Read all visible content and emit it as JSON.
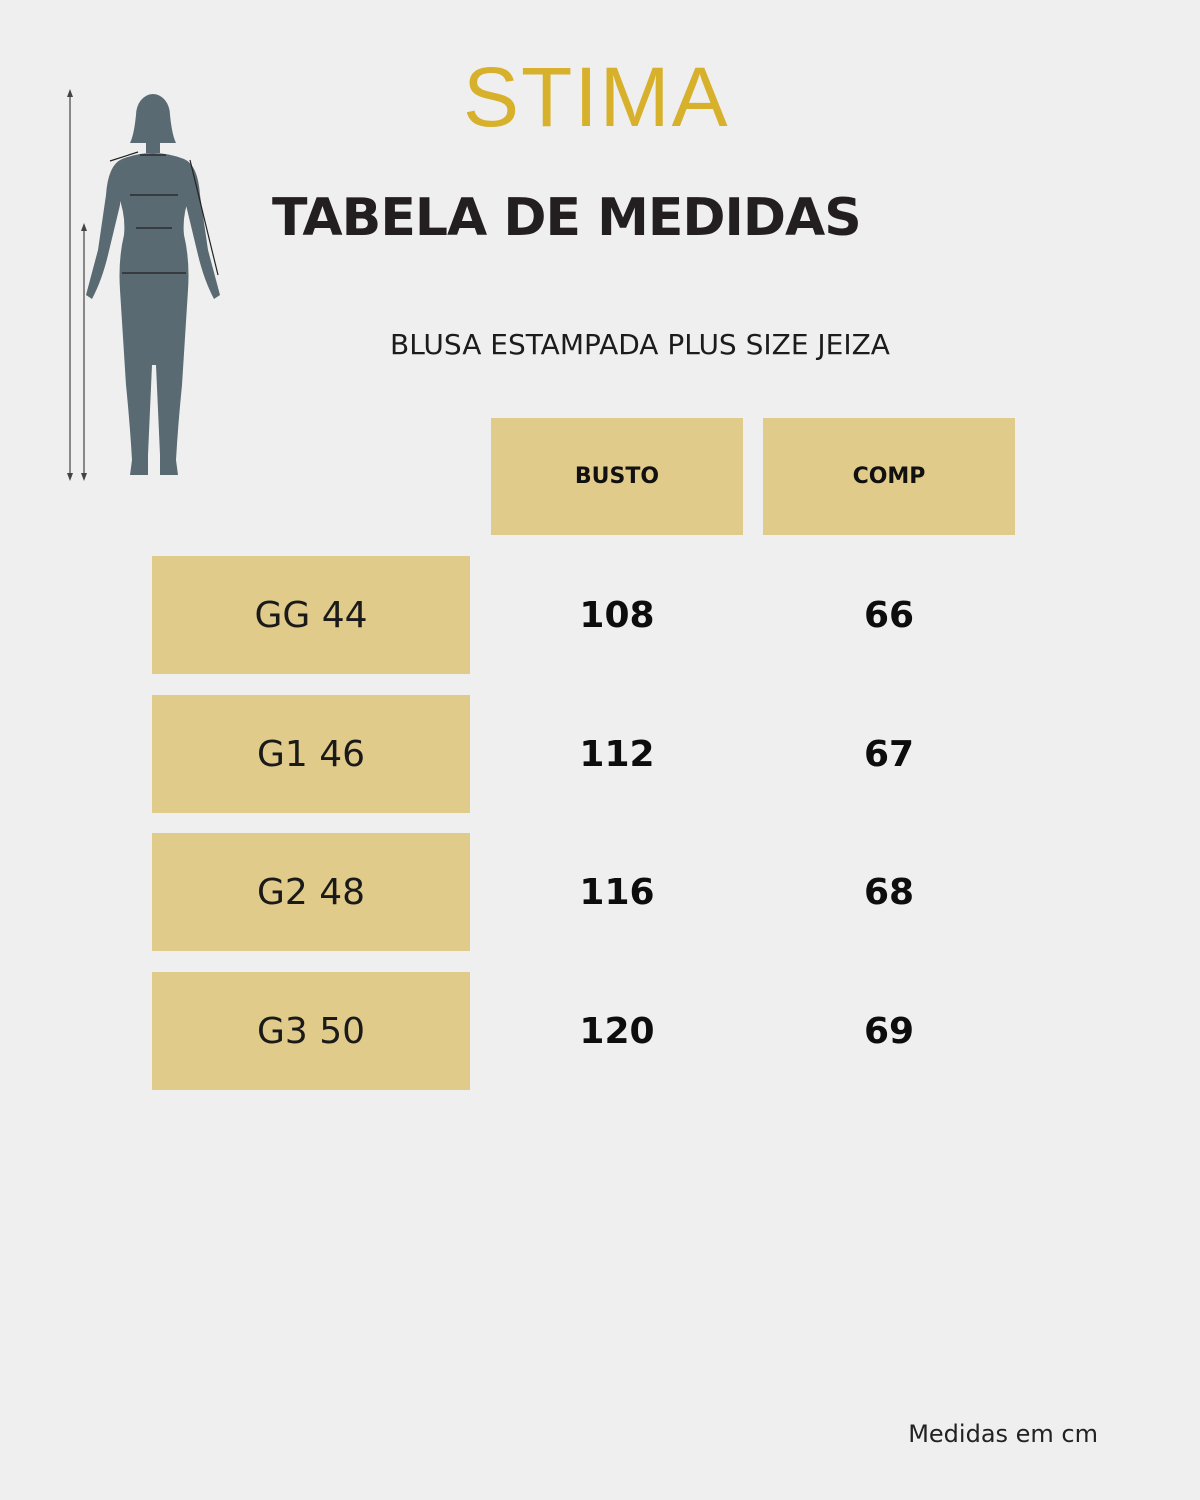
{
  "brand": "STIMA",
  "title": "TABELA DE MEDIDAS",
  "subtitle": "BLUSA ESTAMPADA PLUS SIZE JEIZA",
  "columns": [
    "BUSTO",
    "COMP"
  ],
  "rows": [
    {
      "size": "GG 44",
      "busto": "108",
      "comp": "66"
    },
    {
      "size": "G1 46",
      "busto": "112",
      "comp": "67"
    },
    {
      "size": "G2 48",
      "busto": "116",
      "comp": "68"
    },
    {
      "size": "G3 50",
      "busto": "120",
      "comp": "69"
    }
  ],
  "note": "Medidas em cm",
  "colors": {
    "background": "#efefef",
    "gold": "#d7b02c",
    "cell": "#e1cb8a",
    "figure": "#5a6a72"
  },
  "icons": {
    "figure": "body-measurement-figure-icon"
  }
}
